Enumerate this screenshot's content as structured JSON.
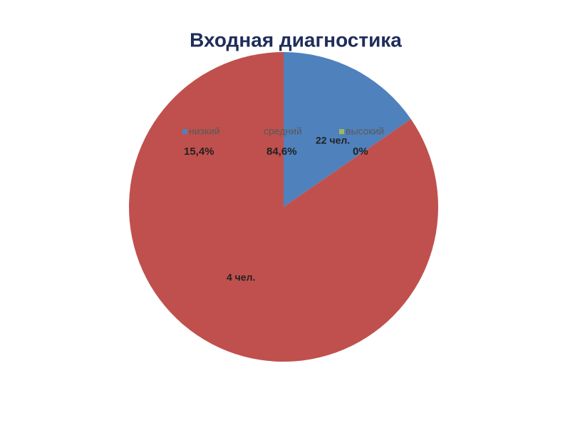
{
  "chart_data": {
    "type": "pie",
    "title": "Входная диагностика",
    "categories": [
      "низкий",
      "средний",
      "высокий"
    ],
    "values": [
      15.4,
      84.6,
      0
    ],
    "value_labels": [
      "15,4%",
      "84,6%",
      "0%"
    ],
    "colors": [
      "#4f81bd",
      "#c0504d",
      "#9bbb59"
    ],
    "annotations": [
      "22 чел.",
      "4 чел."
    ]
  }
}
